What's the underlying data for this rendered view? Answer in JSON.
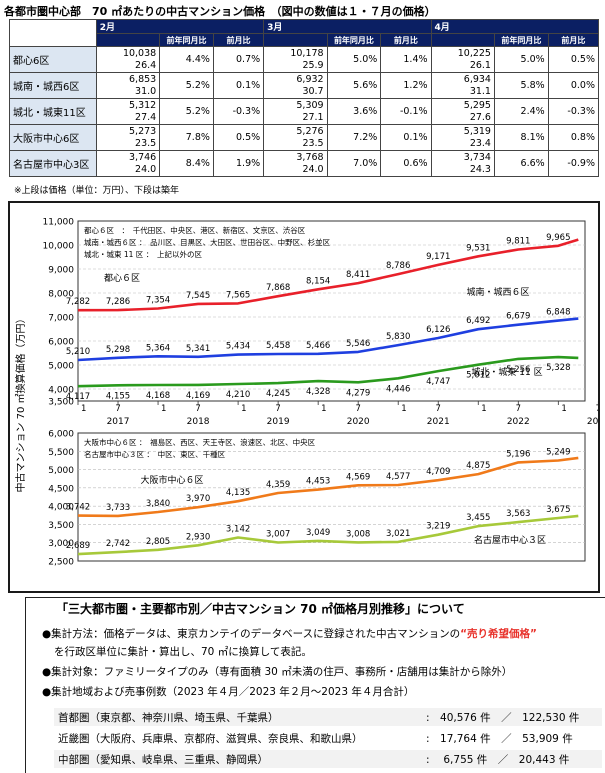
{
  "title": "各都市圏中心部　70 ㎡あたりの中古マンション価格　（図中の数値は１・７月の価格）",
  "table": {
    "periods": [
      "2月",
      "3月",
      "4月"
    ],
    "subheaders": [
      "前年同月比",
      "前月比"
    ],
    "rows": [
      {
        "label": "都心6区",
        "cells": [
          [
            "10,038",
            "26.4",
            "4.4%",
            "0.7%"
          ],
          [
            "10,178",
            "25.9",
            "5.0%",
            "1.4%"
          ],
          [
            "10,225",
            "26.1",
            "5.0%",
            "0.5%"
          ]
        ]
      },
      {
        "label": "城南・城西6区",
        "cells": [
          [
            "6,853",
            "31.0",
            "5.2%",
            "0.1%"
          ],
          [
            "6,932",
            "30.7",
            "5.6%",
            "1.2%"
          ],
          [
            "6,934",
            "31.1",
            "5.8%",
            "0.0%"
          ]
        ]
      },
      {
        "label": "城北・城東11区",
        "cells": [
          [
            "5,312",
            "27.4",
            "5.2%",
            "-0.3%"
          ],
          [
            "5,309",
            "27.1",
            "3.6%",
            "-0.1%"
          ],
          [
            "5,295",
            "27.6",
            "2.4%",
            "-0.3%"
          ]
        ]
      },
      {
        "label": "大阪市中心6区",
        "cells": [
          [
            "5,273",
            "23.5",
            "7.8%",
            "0.5%"
          ],
          [
            "5,276",
            "23.5",
            "7.2%",
            "0.1%"
          ],
          [
            "5,319",
            "23.4",
            "8.1%",
            "0.8%"
          ]
        ]
      },
      {
        "label": "名古屋市中心3区",
        "cells": [
          [
            "3,746",
            "24.0",
            "8.4%",
            "1.9%"
          ],
          [
            "3,768",
            "24.0",
            "7.0%",
            "0.6%"
          ],
          [
            "3,734",
            "24.3",
            "6.6%",
            "-0.9%"
          ]
        ]
      }
    ],
    "note": "※上段は価格（単位：万円）、下段は築年"
  },
  "chart_data": [
    {
      "type": "line",
      "ylabel": "中古マンション 70 ㎡換算価格（万円）",
      "ylim": [
        3500,
        11000
      ],
      "yticks": [
        "11,000",
        "10,000",
        "9,000",
        "8,000",
        "7,000",
        "6,000",
        "5,000",
        "4,000",
        "3,500"
      ],
      "x_ticks": [
        "1",
        "7",
        "1",
        "7",
        "1",
        "7",
        "1",
        "7",
        "1",
        "7",
        "1",
        "7",
        "1",
        "7"
      ],
      "x_years": [
        "2017",
        "2018",
        "2019",
        "2020",
        "2021",
        "2022",
        "2023"
      ],
      "legend_notes": [
        "都心６区　：　千代田区、中央区、港区、新宿区、文京区、渋谷区",
        "城南・城西６区 ：　品川区、目黒区、大田区、世田谷区、中野区、杉並区",
        "城北・城東 11 区 ：　上記以外の区"
      ],
      "grid": true,
      "x": [
        "2017-01",
        "2017-07",
        "2018-01",
        "2018-07",
        "2019-01",
        "2019-07",
        "2020-01",
        "2020-07",
        "2021-01",
        "2021-07",
        "2022-01",
        "2022-07",
        "2023-01",
        "2023-04"
      ],
      "series": [
        {
          "name": "都心６区",
          "color": "#e8202a",
          "values": [
            7282,
            7286,
            7354,
            7545,
            7565,
            7868,
            8154,
            8411,
            8786,
            9171,
            9531,
            9811,
            9965,
            10225
          ],
          "labels": [
            "7,282",
            "7,286",
            "7,354",
            "7,545",
            "7,565",
            "7,868",
            "8,154",
            "8,411",
            "8,786",
            "9,171",
            "9,531",
            "9,811",
            "9,965",
            ""
          ]
        },
        {
          "name": "城南・城西６区",
          "color": "#1f3fe0",
          "values": [
            5210,
            5298,
            5364,
            5341,
            5434,
            5458,
            5466,
            5546,
            5830,
            6126,
            6492,
            6679,
            6848,
            6934
          ],
          "labels": [
            "5,210",
            "5,298",
            "5,364",
            "5,341",
            "5,434",
            "5,458",
            "5,466",
            "5,546",
            "5,830",
            "6,126",
            "6,492",
            "6,679",
            "6,848",
            ""
          ]
        },
        {
          "name": "城北・城東 11 区",
          "color": "#2a9a1d",
          "values": [
            4117,
            4155,
            4168,
            4169,
            4210,
            4245,
            4328,
            4279,
            4446,
            4747,
            5012,
            5256,
            5328,
            5295
          ],
          "labels": [
            "4,117",
            "4,155",
            "4,168",
            "4,169",
            "4,210",
            "4,245",
            "4,328",
            "4,279",
            "4,446",
            "4,747",
            "5,012",
            "5,256",
            "5,328",
            ""
          ]
        }
      ]
    },
    {
      "type": "line",
      "ylim": [
        2500,
        6000
      ],
      "yticks": [
        "6,000",
        "5,500",
        "5,000",
        "4,500",
        "4,000",
        "3,500",
        "3,000",
        "2,500"
      ],
      "legend_notes": [
        "大阪市中心６区 ：　福島区、西区、天王寺区、浪速区、北区、中央区",
        "名古屋市中心３区 ：　中区、東区、千種区"
      ],
      "x": [
        "2017-01",
        "2017-07",
        "2018-01",
        "2018-07",
        "2019-01",
        "2019-07",
        "2020-01",
        "2020-07",
        "2021-01",
        "2021-07",
        "2022-01",
        "2022-07",
        "2023-01",
        "2023-04"
      ],
      "series": [
        {
          "name": "大阪市中心６区",
          "color": "#f07a1a",
          "values": [
            3742,
            3733,
            3840,
            3970,
            4135,
            4359,
            4453,
            4569,
            4577,
            4709,
            4875,
            5196,
            5249,
            5319
          ],
          "labels": [
            "3,742",
            "3,733",
            "3,840",
            "3,970",
            "4,135",
            "4,359",
            "4,453",
            "4,569",
            "4,577",
            "4,709",
            "4,875",
            "5,196",
            "5,249",
            ""
          ]
        },
        {
          "name": "名古屋市中心３区",
          "color": "#a7c93a",
          "values": [
            2689,
            2742,
            2805,
            2930,
            3142,
            3007,
            3049,
            3008,
            3021,
            3219,
            3455,
            3563,
            3675,
            3734
          ],
          "labels": [
            "2,689",
            "2,742",
            "2,805",
            "2,930",
            "3,142",
            "3,007",
            "3,049",
            "3,008",
            "3,021",
            "3,219",
            "3,455",
            "3,563",
            "3,675",
            ""
          ]
        }
      ]
    }
  ],
  "about": {
    "title": "「三大都市圏・主要都市別／中古マンション 70 ㎡価格月別推移」について",
    "method_prefix": "●集計方法：価格データは、東京カンテイのデータベースに登録された中古マンションの",
    "method_highlight": "“売り希望価格”",
    "method_line2": "を行政区単位に集計・算出し、70 ㎡に換算して表記。",
    "target": "●集計対象：ファミリータイプのみ（専有面積 30 ㎡未満の住戸、事務所・店舗用は集計から除外）",
    "regions_title": "●集計地域および売事例数（2023 年４月／2023 年２月～2023 年４月合計）",
    "regions": [
      {
        "name": "首都圏（東京都、神奈川県、埼玉県、千葉県）",
        "value": ":　40,576 件　／　122,530 件"
      },
      {
        "name": "近畿圏（大阪府、兵庫県、京都府、滋賀県、奈良県、和歌山県）",
        "value": ":　17,764 件　／　53,909 件"
      },
      {
        "name": "中部圏（愛知県、岐阜県、三重県、静岡県）",
        "value": ":　 6,755 件　／　20,443 件"
      }
    ]
  }
}
